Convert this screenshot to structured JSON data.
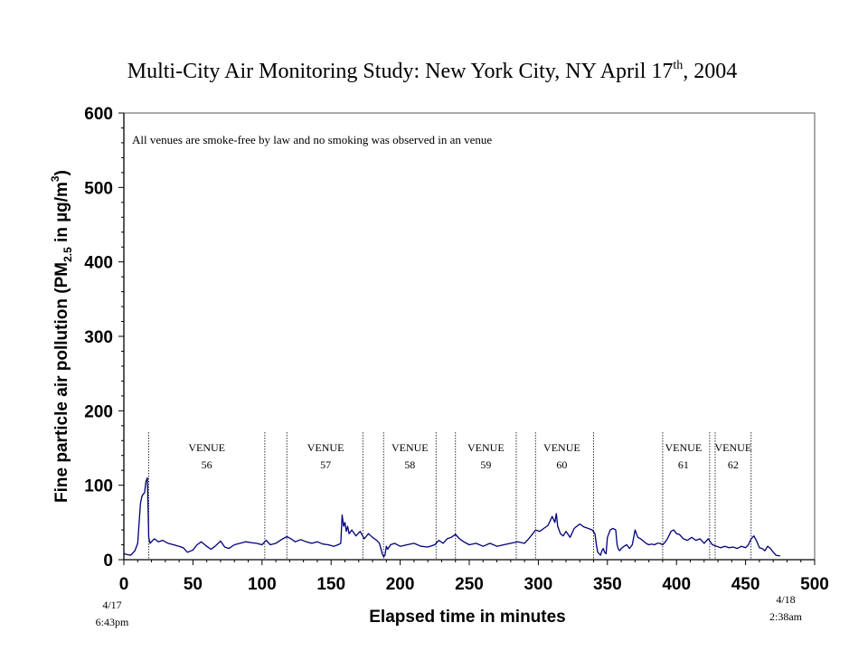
{
  "chart_data": {
    "type": "line",
    "title": "Multi-City Air Monitoring Study: New York City, NY April 17",
    "title_sup": "th",
    "title_suffix": ", 2004",
    "xlabel": "Elapsed time in minutes",
    "ylabel_pre": "Fine particle air pollution (PM",
    "ylabel_sub": "2.5",
    "ylabel_mid": " in µg/m",
    "ylabel_sup": "3",
    "ylabel_post": ")",
    "xlim": [
      0,
      500
    ],
    "ylim": [
      0,
      600
    ],
    "xticks": [
      0,
      50,
      100,
      150,
      200,
      250,
      300,
      350,
      400,
      450,
      500
    ],
    "yticks": [
      0,
      100,
      200,
      300,
      400,
      500,
      600
    ],
    "grid": false,
    "line_color": "#00007a",
    "annotation": "All venues are smoke-free by law and no smoking was observed in an venue",
    "start_label": [
      "4/17",
      "6:43pm"
    ],
    "end_label": [
      "4/18",
      "2:38am"
    ],
    "venue_boundaries": [
      18,
      102,
      118,
      173,
      188,
      226,
      240,
      284,
      298,
      340,
      390,
      424,
      428,
      454
    ],
    "venues": [
      {
        "label": [
          "VENUE",
          "56"
        ],
        "x": 60
      },
      {
        "label": [
          "VENUE",
          "57"
        ],
        "x": 146
      },
      {
        "label": [
          "VENUE",
          "58"
        ],
        "x": 207
      },
      {
        "label": [
          "VENUE",
          "59"
        ],
        "x": 262
      },
      {
        "label": [
          "VENUE",
          "60"
        ],
        "x": 317
      },
      {
        "label": [
          "VENUE",
          "61"
        ],
        "x": 405
      },
      {
        "label": [
          "VENUE",
          "62"
        ],
        "x": 441
      }
    ],
    "series": [
      {
        "x": [
          0,
          2,
          5,
          8,
          10,
          12,
          13,
          14,
          15,
          16,
          17,
          18,
          19,
          20,
          22,
          25,
          28,
          32,
          36,
          40,
          43,
          46,
          50,
          53,
          56,
          60,
          63,
          66,
          70,
          73,
          76,
          80,
          84,
          88,
          92,
          96,
          100,
          103,
          106,
          110,
          114,
          118,
          121,
          124,
          128,
          132,
          136,
          140,
          144,
          148,
          152,
          155,
          157,
          158,
          159,
          160,
          161,
          162,
          163,
          165,
          168,
          171,
          174,
          177,
          180,
          183,
          185,
          186,
          187,
          188,
          189,
          190,
          191,
          193,
          196,
          200,
          205,
          210,
          215,
          220,
          225,
          228,
          231,
          234,
          237,
          240,
          243,
          246,
          250,
          255,
          260,
          265,
          270,
          275,
          280,
          285,
          290,
          293,
          296,
          298,
          301,
          304,
          307,
          310,
          312,
          313,
          314,
          315,
          316,
          318,
          320,
          323,
          326,
          330,
          333,
          336,
          339,
          341,
          342,
          343,
          344,
          345,
          346,
          347,
          348,
          349,
          350,
          352,
          354,
          356,
          357,
          358,
          359,
          360,
          362,
          364,
          366,
          368,
          370,
          372,
          374,
          376,
          378,
          380,
          382,
          384,
          386,
          388,
          390,
          392,
          394,
          396,
          398,
          400,
          402,
          405,
          408,
          411,
          414,
          417,
          420,
          423,
          426,
          429,
          432,
          435,
          438,
          441,
          444,
          447,
          450,
          452,
          454,
          456,
          458,
          460,
          462,
          464,
          466,
          468,
          470,
          472,
          475
        ],
        "y": [
          8,
          7,
          6,
          12,
          22,
          75,
          85,
          88,
          90,
          105,
          110,
          30,
          22,
          24,
          28,
          24,
          26,
          22,
          20,
          18,
          16,
          10,
          13,
          20,
          24,
          18,
          14,
          18,
          25,
          17,
          15,
          20,
          22,
          24,
          23,
          22,
          20,
          26,
          20,
          22,
          27,
          31,
          28,
          24,
          27,
          24,
          22,
          24,
          21,
          20,
          18,
          20,
          22,
          60,
          45,
          50,
          38,
          45,
          35,
          40,
          32,
          38,
          28,
          35,
          30,
          26,
          22,
          15,
          8,
          4,
          6,
          18,
          14,
          20,
          22,
          18,
          20,
          22,
          18,
          17,
          20,
          26,
          22,
          28,
          30,
          34,
          28,
          24,
          20,
          22,
          18,
          22,
          18,
          20,
          22,
          24,
          22,
          28,
          35,
          40,
          38,
          42,
          46,
          58,
          50,
          62,
          45,
          40,
          35,
          32,
          38,
          30,
          42,
          48,
          44,
          42,
          40,
          35,
          20,
          10,
          8,
          6,
          12,
          15,
          10,
          8,
          30,
          40,
          42,
          40,
          20,
          14,
          12,
          15,
          18,
          20,
          15,
          20,
          40,
          30,
          28,
          25,
          22,
          20,
          21,
          20,
          22,
          22,
          20,
          24,
          30,
          38,
          40,
          35,
          34,
          28,
          26,
          30,
          26,
          28,
          22,
          28,
          20,
          18,
          16,
          18,
          16,
          17,
          15,
          18,
          16,
          20,
          28,
          32,
          25,
          16,
          15,
          12,
          18,
          15,
          10,
          6,
          5
        ]
      }
    ]
  }
}
